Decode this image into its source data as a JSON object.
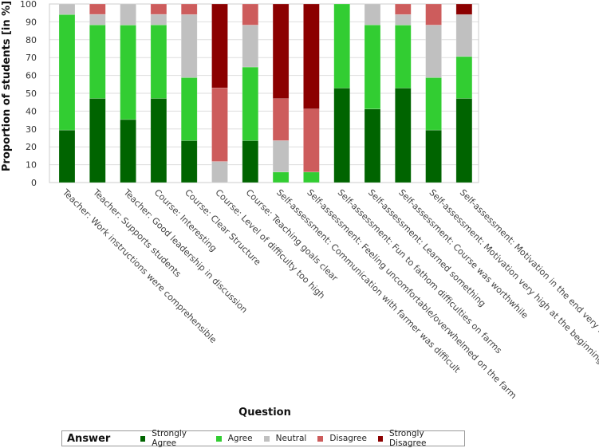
{
  "chart_data": {
    "type": "bar",
    "stacked": true,
    "title": "",
    "xlabel": "Question",
    "ylabel": "Proportion of students [in %]",
    "ylim": [
      0,
      100
    ],
    "yticks": [
      "0",
      "10",
      "20",
      "30",
      "40",
      "50",
      "60",
      "70",
      "80",
      "90",
      "100"
    ],
    "grid": true,
    "categories": [
      "Teacher: Work instructions were comprehensible",
      "Teacher: Supports students",
      "Teacher: Good leadership in discussion",
      "Course: Interesting",
      "Course: Clear Structure",
      "Course: Level of difficulty too high",
      "Course: Teaching goals clear",
      "Self-assessment: Communication with farmer was difficult",
      "Self-assessment: Feeling uncomfortable/overwhelmed on the farm",
      "Self-assessment: Fun to fathom difficulties on farms",
      "Self-assessment: Learned something",
      "Self-assessment: Course was worthwhile",
      "Self-assessment: Motivation very high at the beginning",
      "Self-assessment: Motivation in the end very high"
    ],
    "series": [
      {
        "name": "Strongly Agree",
        "color": "#006400",
        "values": [
          29.4,
          47.1,
          35.3,
          47.1,
          23.5,
          0,
          23.5,
          0,
          0,
          52.9,
          41.2,
          52.9,
          29.4,
          47.1
        ]
      },
      {
        "name": "Agree",
        "color": "#32cd32",
        "values": [
          64.7,
          41.2,
          52.9,
          41.2,
          35.3,
          0,
          41.2,
          5.9,
          5.9,
          47.1,
          47.1,
          35.3,
          29.4,
          23.5
        ]
      },
      {
        "name": "Neutral",
        "color": "#c0c0c0",
        "values": [
          5.9,
          5.9,
          11.8,
          5.9,
          35.3,
          11.8,
          23.5,
          17.6,
          0,
          0,
          11.7,
          5.9,
          29.4,
          23.5
        ]
      },
      {
        "name": "Disagree",
        "color": "#cd5c5c",
        "values": [
          0,
          5.8,
          0,
          5.8,
          5.9,
          41.2,
          11.8,
          23.5,
          35.3,
          0,
          0,
          5.9,
          11.8,
          0
        ]
      },
      {
        "name": "Strongly Disagree",
        "color": "#8b0000",
        "values": [
          0,
          0,
          0,
          0,
          0,
          47.0,
          0,
          53.0,
          58.8,
          0,
          0,
          0,
          0,
          5.9
        ]
      }
    ],
    "legend_title": "Answer",
    "legend_position": "bottom"
  }
}
